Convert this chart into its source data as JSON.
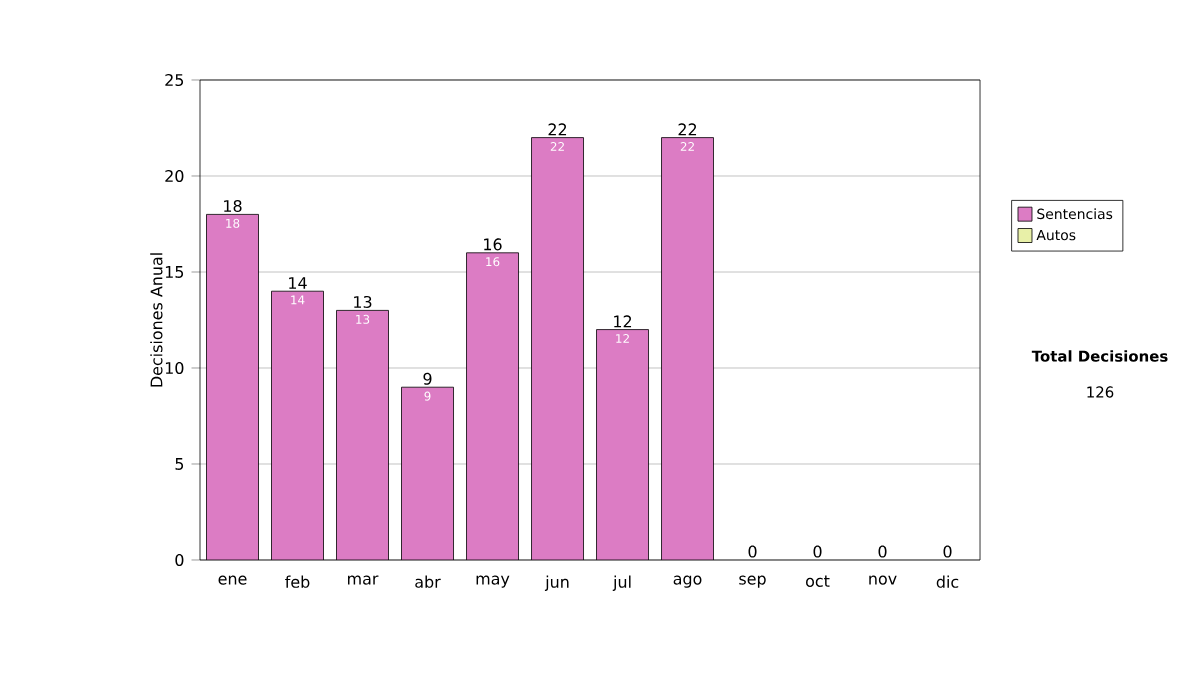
{
  "chart_data": {
    "type": "bar",
    "stacked": true,
    "ylabel": "Decisiones Anual",
    "categories": [
      "ene",
      "feb",
      "mar",
      "abr",
      "may",
      "jun",
      "jul",
      "ago",
      "sep",
      "oct",
      "nov",
      "dic"
    ],
    "series": [
      {
        "name": "Sentencias",
        "color": "#dc7cc4",
        "values": [
          18,
          14,
          13,
          9,
          16,
          22,
          12,
          22,
          0,
          0,
          0,
          0
        ],
        "value_labels": [
          "18",
          "14",
          "13",
          "9",
          "16",
          "22",
          "12",
          "22",
          null,
          null,
          null,
          null
        ]
      },
      {
        "name": "Autos",
        "color": "#e8f0a8",
        "values": [
          0,
          0,
          0,
          0,
          0,
          0,
          0,
          0,
          0,
          0,
          0,
          0
        ]
      }
    ],
    "totals": [
      "18",
      "14",
      "13",
      "9",
      "16",
      "22",
      "12",
      "22",
      "0",
      "0",
      "0",
      "0"
    ],
    "ylim": [
      0,
      25
    ],
    "yticks": [
      0,
      5,
      10,
      15,
      20,
      25
    ],
    "grid": "y",
    "legend": "right",
    "annotations": [
      "Total Decisiones",
      "126"
    ]
  }
}
